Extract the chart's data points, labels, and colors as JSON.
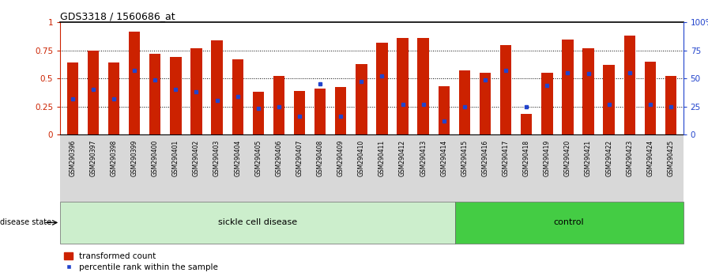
{
  "title": "GDS3318 / 1560686_at",
  "samples": [
    "GSM290396",
    "GSM290397",
    "GSM290398",
    "GSM290399",
    "GSM290400",
    "GSM290401",
    "GSM290402",
    "GSM290403",
    "GSM290404",
    "GSM290405",
    "GSM290406",
    "GSM290407",
    "GSM290408",
    "GSM290409",
    "GSM290410",
    "GSM290411",
    "GSM290412",
    "GSM290413",
    "GSM290414",
    "GSM290415",
    "GSM290416",
    "GSM290417",
    "GSM290418",
    "GSM290419",
    "GSM290420",
    "GSM290421",
    "GSM290422",
    "GSM290423",
    "GSM290424",
    "GSM290425"
  ],
  "transformed_count": [
    0.64,
    0.75,
    0.64,
    0.92,
    0.72,
    0.69,
    0.77,
    0.84,
    0.67,
    0.38,
    0.52,
    0.39,
    0.41,
    0.42,
    0.63,
    0.82,
    0.86,
    0.86,
    0.43,
    0.57,
    0.55,
    0.8,
    0.18,
    0.55,
    0.85,
    0.77,
    0.62,
    0.88,
    0.65,
    0.52
  ],
  "percentile_rank": [
    0.32,
    0.4,
    0.32,
    0.57,
    0.49,
    0.4,
    0.38,
    0.3,
    0.34,
    0.23,
    0.25,
    0.16,
    0.45,
    0.16,
    0.47,
    0.52,
    0.27,
    0.27,
    0.12,
    0.25,
    0.49,
    0.57,
    0.25,
    0.44,
    0.55,
    0.54,
    0.27,
    0.55,
    0.27,
    0.25
  ],
  "sickle_count": 19,
  "control_count": 11,
  "bar_color": "#cc2200",
  "dot_color": "#2244cc",
  "sickle_bg": "#cceecc",
  "control_bg": "#44cc44",
  "yticks": [
    0,
    0.25,
    0.5,
    0.75,
    1.0
  ],
  "ytick_left_labels": [
    "0",
    "0.25",
    "0.5",
    "0.75",
    "1"
  ],
  "ytick_right_labels": [
    "0",
    "25",
    "50",
    "75",
    "100%"
  ],
  "xticklabel_bg": "#d8d8d8"
}
